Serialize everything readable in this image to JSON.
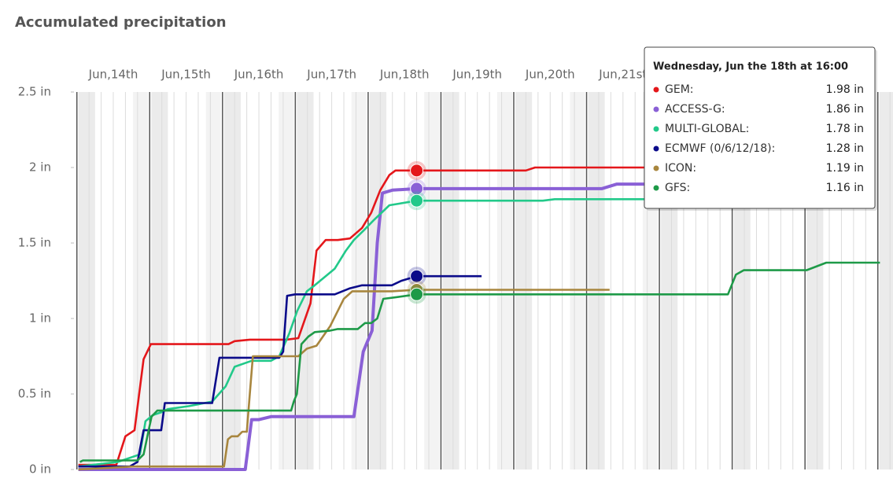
{
  "chart_data": {
    "type": "line",
    "title": "Accumulated precipitation",
    "xlim": [
      -2,
      269
    ],
    "ylim": [
      0,
      2.5
    ],
    "xticks": [
      {
        "value": 12,
        "label": "Jun,14th"
      },
      {
        "value": 36,
        "label": "Jun,15th"
      },
      {
        "value": 60,
        "label": "Jun,16th"
      },
      {
        "value": 84,
        "label": "Jun,17th"
      },
      {
        "value": 108,
        "label": "Jun,18th"
      },
      {
        "value": 132,
        "label": "Jun,19th"
      },
      {
        "value": 156,
        "label": "Jun,20th"
      },
      {
        "value": 180,
        "label": "Jun,21st"
      }
    ],
    "yticks": [
      {
        "value": 0,
        "label": "0 in"
      },
      {
        "value": 0.5,
        "label": "0.5 in"
      },
      {
        "value": 1,
        "label": "1 in"
      },
      {
        "value": 1.5,
        "label": "1.5 in"
      },
      {
        "value": 2,
        "label": "2 in"
      },
      {
        "value": 2.5,
        "label": "2.5 in"
      }
    ],
    "series": [
      {
        "name": "GEM",
        "color": "#e4171b",
        "x": [
          0.5,
          13,
          16,
          19,
          22,
          24.4,
          50,
          52,
          57,
          69,
          73,
          77,
          79,
          82,
          86,
          90,
          94,
          97,
          100,
          103,
          105,
          112,
          148,
          151,
          187
        ],
        "values": [
          0.03,
          0.03,
          0.22,
          0.26,
          0.73,
          0.83,
          0.83,
          0.85,
          0.86,
          0.86,
          0.87,
          1.1,
          1.45,
          1.52,
          1.52,
          1.53,
          1.6,
          1.7,
          1.85,
          1.95,
          1.98,
          1.98,
          1.98,
          2.0,
          2.0
        ]
      },
      {
        "name": "ACCESS-G",
        "color": "#8a60d6",
        "x": [
          0.5,
          55.5,
          57.6,
          60,
          64,
          91.3,
          94.4,
          97.3,
          99,
          100.7,
          104,
          112,
          173,
          178,
          187
        ],
        "values": [
          0,
          0,
          0.33,
          0.33,
          0.35,
          0.35,
          0.78,
          0.92,
          1.5,
          1.83,
          1.85,
          1.86,
          1.86,
          1.89,
          1.89
        ]
      },
      {
        "name": "MULTI-GLOBAL",
        "color": "#22c98a",
        "x": [
          0.5,
          13.5,
          20.8,
          22.6,
          25,
          28,
          30,
          37,
          44.6,
          49,
          52,
          57.6,
          64,
          66.7,
          70,
          72.6,
          75.8,
          78.4,
          82,
          85,
          88.7,
          91.3,
          94.4,
          97.8,
          103,
          112,
          153.6,
          157.5,
          187
        ],
        "values": [
          0.02,
          0.05,
          0.1,
          0.32,
          0.36,
          0.38,
          0.4,
          0.42,
          0.45,
          0.55,
          0.68,
          0.72,
          0.72,
          0.75,
          0.9,
          1.05,
          1.18,
          1.22,
          1.28,
          1.33,
          1.45,
          1.52,
          1.58,
          1.65,
          1.75,
          1.78,
          1.78,
          1.79,
          1.79
        ]
      },
      {
        "name": "ECMWF (0/6/12/18)",
        "color": "#0b0b8a",
        "x": [
          0.5,
          17.4,
          20,
          22,
          27.8,
          29,
          44.6,
          47,
          66.7,
          68,
          69.3,
          71.9,
          85,
          90,
          94,
          103.8,
          107,
          112,
          133.4
        ],
        "values": [
          0.02,
          0.02,
          0.05,
          0.26,
          0.26,
          0.44,
          0.44,
          0.74,
          0.74,
          0.78,
          1.15,
          1.16,
          1.16,
          1.2,
          1.22,
          1.22,
          1.25,
          1.28,
          1.28
        ]
      },
      {
        "name": "ICON",
        "color": "#a8863e",
        "x": [
          0.5,
          18.7,
          48.5,
          49.8,
          51,
          53,
          54.5,
          56,
          57,
          58,
          73,
          75.8,
          79,
          83.5,
          88,
          90.8,
          103.8,
          112,
          175.6
        ],
        "values": [
          0,
          0.02,
          0.02,
          0.2,
          0.22,
          0.22,
          0.25,
          0.25,
          0.5,
          0.75,
          0.75,
          0.8,
          0.82,
          0.95,
          1.13,
          1.18,
          1.18,
          1.19,
          1.19
        ]
      },
      {
        "name": "GFS",
        "color": "#1e9a48",
        "x": [
          1,
          2,
          20,
          22,
          24.6,
          26.5,
          70.6,
          71.5,
          72.5,
          74,
          76.3,
          78.4,
          83.5,
          86,
          92.6,
          95,
          97,
          99,
          101,
          105,
          112,
          214.6,
          217.2,
          219.8,
          240.5,
          247,
          264.7
        ],
        "values": [
          0.05,
          0.06,
          0.06,
          0.1,
          0.35,
          0.39,
          0.39,
          0.45,
          0.5,
          0.83,
          0.88,
          0.91,
          0.92,
          0.93,
          0.93,
          0.97,
          0.97,
          1.0,
          1.13,
          1.14,
          1.16,
          1.16,
          1.29,
          1.32,
          1.32,
          1.37,
          1.37
        ]
      }
    ],
    "tooltip": {
      "title": "Wednesday, Jun the 18th at 16:00",
      "x": 112,
      "value_labels": [
        "1.98 in",
        "1.86 in",
        "1.78 in",
        "1.28 in",
        "1.19 in",
        "1.16 in"
      ]
    }
  }
}
